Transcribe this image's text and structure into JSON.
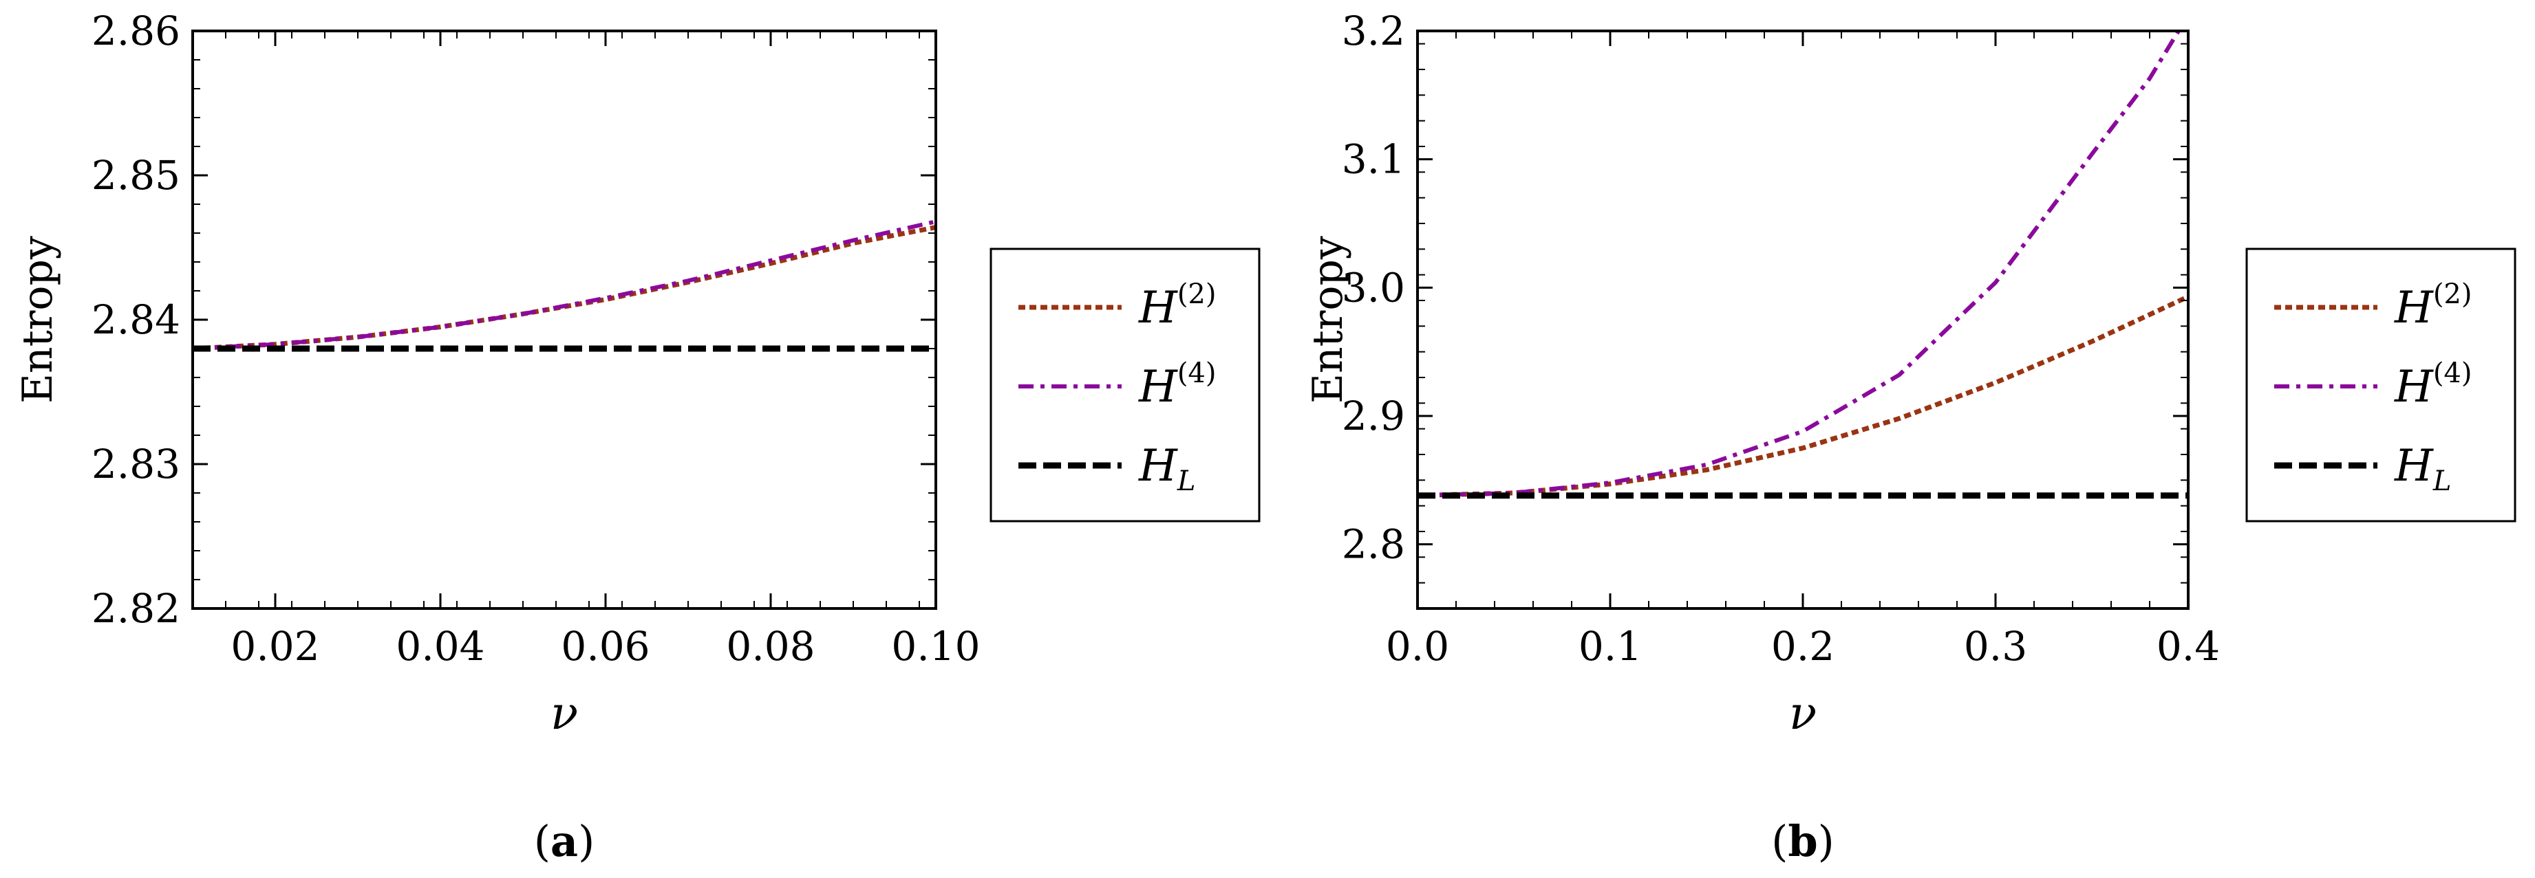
{
  "chart_data": [
    {
      "type": "line",
      "caption_letter": "a",
      "xlabel": "ν",
      "ylabel": "Entropy",
      "xlim": [
        0.01,
        0.1
      ],
      "ylim": [
        2.82,
        2.86
      ],
      "xticks": [
        "0.02",
        "0.04",
        "0.06",
        "0.08",
        "0.10"
      ],
      "xtick_values": [
        0.02,
        0.04,
        0.06,
        0.08,
        0.1
      ],
      "yticks": [
        "2.82",
        "2.83",
        "2.84",
        "2.85",
        "2.86"
      ],
      "ytick_values": [
        2.82,
        2.83,
        2.84,
        2.85,
        2.86
      ],
      "series": [
        {
          "name": "H",
          "superscript": "(2)",
          "subscript": "",
          "color": "#9a3412",
          "style": "dotted",
          "x": [
            0.01,
            0.02,
            0.03,
            0.04,
            0.05,
            0.06,
            0.07,
            0.08,
            0.09,
            0.1
          ],
          "y": [
            2.838,
            2.8383,
            2.8388,
            2.8395,
            2.8404,
            2.8414,
            2.8426,
            2.8439,
            2.8453,
            2.8464
          ]
        },
        {
          "name": "H",
          "superscript": "(4)",
          "subscript": "",
          "color": "#8b0a9c",
          "style": "dashdot",
          "x": [
            0.01,
            0.02,
            0.03,
            0.04,
            0.05,
            0.06,
            0.07,
            0.08,
            0.09,
            0.1
          ],
          "y": [
            2.838,
            2.8383,
            2.8388,
            2.8395,
            2.8404,
            2.8415,
            2.8427,
            2.8441,
            2.8455,
            2.8468
          ]
        },
        {
          "name": "H",
          "superscript": "",
          "subscript": "L",
          "color": "#000000",
          "style": "dashed",
          "x": [
            0.01,
            0.1
          ],
          "y": [
            2.838,
            2.838
          ]
        }
      ]
    },
    {
      "type": "line",
      "caption_letter": "b",
      "xlabel": "ν",
      "ylabel": "Entropy",
      "xlim": [
        0.0,
        0.4
      ],
      "ylim": [
        2.75,
        3.2
      ],
      "xticks": [
        "0.0",
        "0.1",
        "0.2",
        "0.3",
        "0.4"
      ],
      "xtick_values": [
        0.0,
        0.1,
        0.2,
        0.3,
        0.4
      ],
      "yticks": [
        "2.8",
        "2.9",
        "3.0",
        "3.1",
        "3.2"
      ],
      "ytick_values": [
        2.8,
        2.9,
        3.0,
        3.1,
        3.2
      ],
      "series": [
        {
          "name": "H",
          "superscript": "(2)",
          "subscript": "",
          "color": "#9a3412",
          "style": "dotted",
          "x": [
            0.0,
            0.05,
            0.1,
            0.15,
            0.2,
            0.25,
            0.3,
            0.35,
            0.4
          ],
          "y": [
            2.838,
            2.84,
            2.847,
            2.858,
            2.875,
            2.898,
            2.926,
            2.958,
            2.993
          ]
        },
        {
          "name": "H",
          "superscript": "(4)",
          "subscript": "",
          "color": "#8b0a9c",
          "style": "dashdot",
          "x": [
            0.0,
            0.05,
            0.1,
            0.15,
            0.2,
            0.25,
            0.3,
            0.35,
            0.38,
            0.395
          ],
          "y": [
            2.838,
            2.84,
            2.848,
            2.862,
            2.888,
            2.932,
            3.004,
            3.104,
            3.163,
            3.2
          ]
        },
        {
          "name": "H",
          "superscript": "",
          "subscript": "L",
          "color": "#000000",
          "style": "dashed",
          "x": [
            0.0,
            0.4
          ],
          "y": [
            2.838,
            2.838
          ]
        }
      ]
    }
  ]
}
